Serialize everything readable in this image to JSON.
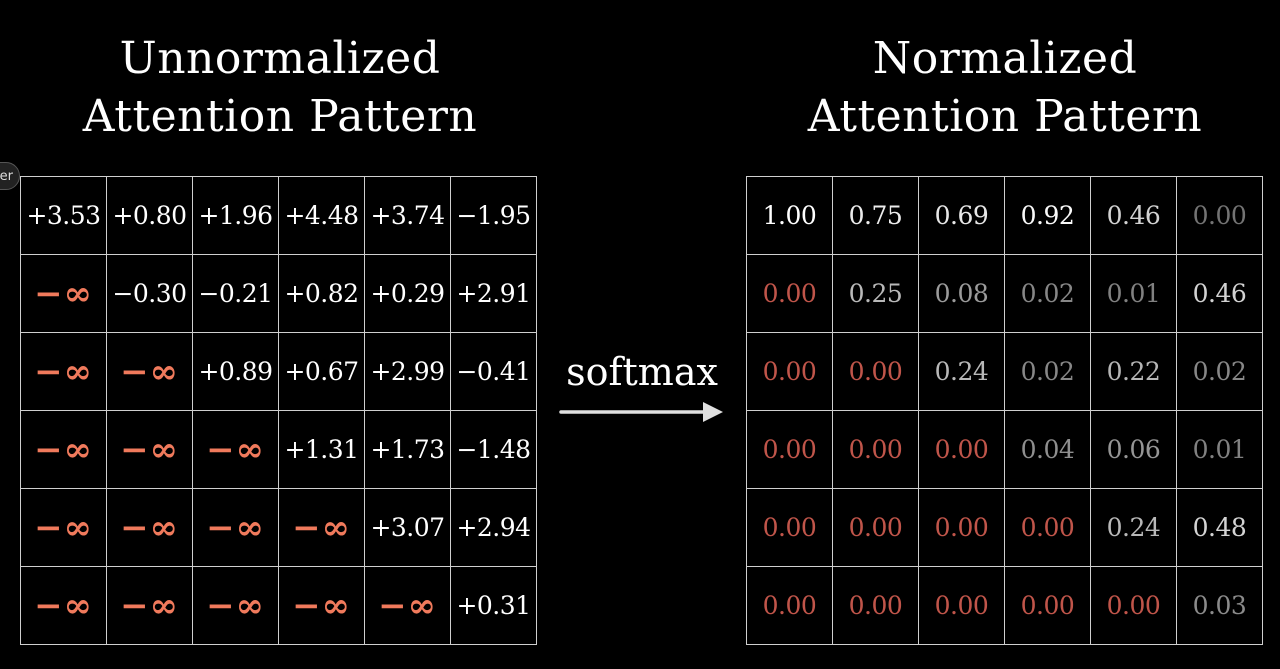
{
  "left_title": {
    "line1": "Unnormalized",
    "line2": "Attention Pattern"
  },
  "right_title": {
    "line1": "Normalized",
    "line2": "Attention Pattern"
  },
  "operation_label": "softmax",
  "side_badge": "er",
  "colors": {
    "background": "#000000",
    "neg_inf": "#f07a5c",
    "masked_zero": "#c0554a",
    "text": "#ffffff",
    "grid_line": "#cfcfcf"
  },
  "unnormalized": [
    [
      "+3.53",
      "+0.80",
      "+1.96",
      "+4.48",
      "+3.74",
      "−1.95"
    ],
    [
      "−∞",
      "−0.30",
      "−0.21",
      "+0.82",
      "+0.29",
      "+2.91"
    ],
    [
      "−∞",
      "−∞",
      "+0.89",
      "+0.67",
      "+2.99",
      "−0.41"
    ],
    [
      "−∞",
      "−∞",
      "−∞",
      "+1.31",
      "+1.73",
      "−1.48"
    ],
    [
      "−∞",
      "−∞",
      "−∞",
      "−∞",
      "+3.07",
      "+2.94"
    ],
    [
      "−∞",
      "−∞",
      "−∞",
      "−∞",
      "−∞",
      "+0.31"
    ]
  ],
  "normalized": [
    [
      "1.00",
      "0.75",
      "0.69",
      "0.92",
      "0.46",
      "0.00"
    ],
    [
      "0.00",
      "0.25",
      "0.08",
      "0.02",
      "0.01",
      "0.46"
    ],
    [
      "0.00",
      "0.00",
      "0.24",
      "0.02",
      "0.22",
      "0.02"
    ],
    [
      "0.00",
      "0.00",
      "0.00",
      "0.04",
      "0.06",
      "0.01"
    ],
    [
      "0.00",
      "0.00",
      "0.00",
      "0.00",
      "0.24",
      "0.48"
    ],
    [
      "0.00",
      "0.00",
      "0.00",
      "0.00",
      "0.00",
      "0.03"
    ]
  ]
}
